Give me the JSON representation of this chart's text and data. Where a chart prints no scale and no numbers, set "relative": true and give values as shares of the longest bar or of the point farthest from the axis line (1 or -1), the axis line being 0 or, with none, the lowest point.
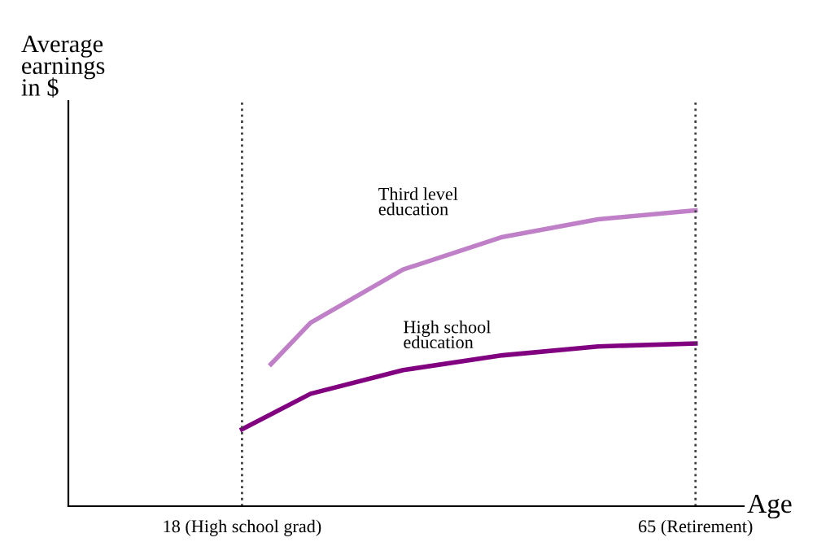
{
  "chart_data": {
    "type": "line",
    "relative": true,
    "xlabel": "Age",
    "ylabel": "Average\nearnings\nin $",
    "xlim": [
      0,
      70
    ],
    "xticks": [
      {
        "value": 18,
        "label": "18 (High school grad)"
      },
      {
        "value": 65,
        "label": "65 (Retirement)"
      }
    ],
    "series": [
      {
        "name": "Third level\neducation",
        "color": "#c080c8",
        "x": [
          21.0,
          25.1,
          34.7,
          45.0,
          54.9,
          65
        ],
        "values": [
          0.48,
          0.62,
          0.8,
          0.91,
          0.97,
          1.0
        ]
      },
      {
        "name": "High school\neducation",
        "color": "#800080",
        "x": [
          18,
          25.1,
          34.7,
          45.0,
          54.9,
          65
        ],
        "values": [
          0.26,
          0.38,
          0.46,
          0.51,
          0.54,
          0.55
        ]
      }
    ],
    "ref_lines": [
      {
        "axis": "x",
        "value": 18,
        "line_style": "dotted",
        "color": "#404040"
      },
      {
        "axis": "x",
        "value": 65,
        "line_style": "dotted",
        "color": "#404040"
      }
    ],
    "grid": false,
    "legend": false,
    "marker": "none",
    "line_style": "solid"
  }
}
